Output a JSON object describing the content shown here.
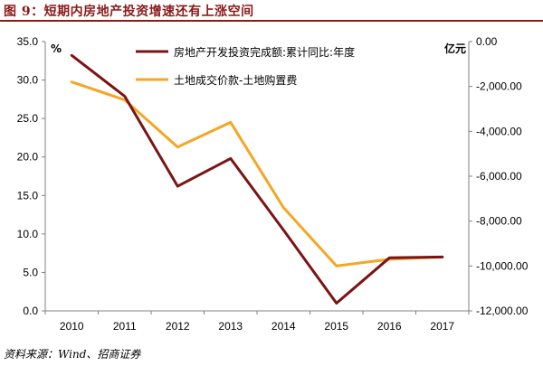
{
  "header": {
    "title": "图 9：短期内房地产投资增速还有上涨空间"
  },
  "footer": {
    "source": "资料来源：Wind、招商证券"
  },
  "chart_data": {
    "type": "line",
    "categories": [
      "2010",
      "2011",
      "2012",
      "2013",
      "2014",
      "2015",
      "2016",
      "2017"
    ],
    "series": [
      {
        "name": "房地产开发投资完成额:累计同比:年度",
        "axis": "left",
        "color": "#7b1414",
        "values": [
          33.2,
          27.9,
          16.2,
          19.8,
          10.5,
          1.0,
          6.9,
          7.0
        ]
      },
      {
        "name": "土地成交价款-土地购置费",
        "axis": "right",
        "color": "#f5a623",
        "values": [
          -1800,
          -2600,
          -4700,
          -3600,
          -7400,
          -10000,
          -9700,
          -9600
        ]
      }
    ],
    "left_axis": {
      "unit": "%",
      "ylim": [
        0,
        35
      ],
      "ticks": [
        "0.0",
        "5.0",
        "10.0",
        "15.0",
        "20.0",
        "25.0",
        "30.0",
        "35.0"
      ]
    },
    "right_axis": {
      "unit": "亿元",
      "ylim": [
        -12000,
        0
      ],
      "ticks": [
        "0.00",
        "-2,000.00",
        "-4,000.00",
        "-6,000.00",
        "-8,000.00",
        "-10,000.00",
        "-12,000.00"
      ]
    },
    "grid": false,
    "legend_position": "top-center"
  }
}
